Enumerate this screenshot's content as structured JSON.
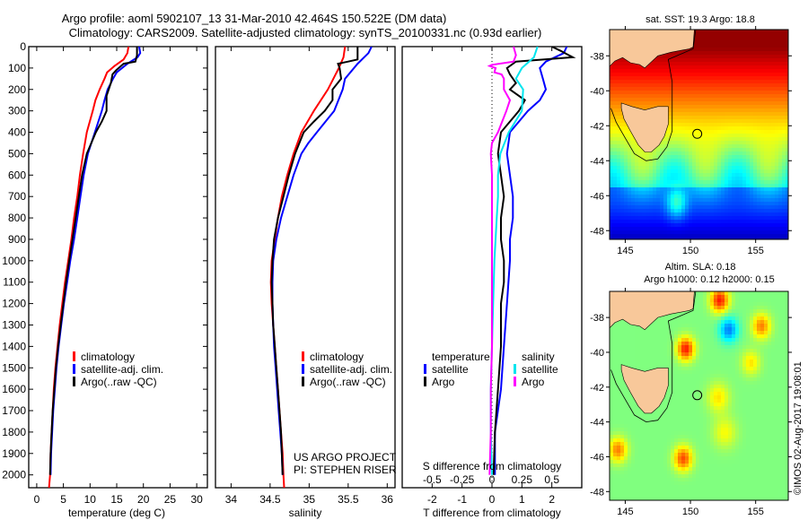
{
  "title": {
    "line1": "Argo profile: aoml 5902107_13 31-Mar-2010 42.464S 150.522E (DM data)",
    "line2": "Climatology: CARS2009. Satellite-adjusted climatology: synTS_20100331.nc (0.93d earlier)"
  },
  "colors": {
    "climatology": "#ff0000",
    "satellite": "#0000ff",
    "argo": "#000000",
    "sal_satellite": "#00e5ee",
    "sal_argo": "#ff00ff",
    "land": "#f8c89a"
  },
  "chart_data": [
    {
      "type": "line",
      "name": "temperature-profile",
      "xlabel": "temperature (deg C)",
      "ylabel": "",
      "xlim": [
        -1.5,
        32
      ],
      "ylim": [
        2060,
        0
      ],
      "xticks": [
        0,
        5,
        10,
        15,
        20,
        25,
        30
      ],
      "yticks": [
        0,
        100,
        200,
        300,
        400,
        500,
        600,
        700,
        800,
        900,
        1000,
        1100,
        1200,
        1300,
        1400,
        1500,
        1600,
        1700,
        1800,
        1900,
        2000
      ],
      "legend": [
        "climatology",
        "satellite-adj. clim.",
        "Argo(..raw -QC)"
      ],
      "legend_position": "lower-center",
      "series": [
        {
          "name": "climatology",
          "color": "#ff0000",
          "depth": [
            0,
            30,
            60,
            90,
            120,
            150,
            200,
            250,
            300,
            400,
            500,
            600,
            700,
            800,
            900,
            1000,
            1100,
            1200,
            1300,
            1400,
            1500,
            1600,
            1700,
            1800,
            1900,
            2000,
            2060
          ],
          "values": [
            17.2,
            17.0,
            16.3,
            14.6,
            13.2,
            12.7,
            11.8,
            11.0,
            10.5,
            9.4,
            8.7,
            8.1,
            7.6,
            7.0,
            6.5,
            5.9,
            5.3,
            4.8,
            4.3,
            3.9,
            3.5,
            3.2,
            3.0,
            2.8,
            2.6,
            2.5,
            2.3
          ]
        },
        {
          "name": "satellite-adj. clim.",
          "color": "#0000ff",
          "depth": [
            0,
            30,
            50,
            80,
            120,
            150,
            200,
            250,
            300,
            400,
            500,
            600,
            700,
            800,
            900,
            1000,
            1100,
            1200,
            1300,
            1400,
            1500,
            1600,
            1700,
            1800,
            1900,
            2000
          ],
          "values": [
            19.2,
            19.4,
            18.9,
            17.0,
            15.0,
            14.3,
            13.3,
            12.7,
            12.2,
            10.9,
            9.6,
            8.8,
            8.2,
            7.6,
            7.0,
            6.3,
            5.7,
            5.1,
            4.6,
            4.1,
            3.7,
            3.4,
            3.1,
            2.9,
            2.7,
            2.6
          ]
        },
        {
          "name": "Argo(..raw -QC)",
          "color": "#000000",
          "depth": [
            0,
            40,
            70,
            80,
            110,
            130,
            170,
            230,
            300,
            350,
            400,
            500,
            600,
            700,
            800,
            900,
            1000,
            1100,
            1200,
            1300,
            1400,
            1500,
            1600,
            1700,
            1800,
            1900,
            2000
          ],
          "values": [
            18.8,
            18.8,
            18.5,
            16.3,
            14.9,
            14.2,
            13.9,
            13.1,
            13.1,
            12.2,
            11.1,
            9.4,
            8.5,
            7.9,
            7.3,
            6.7,
            6.1,
            5.5,
            5.0,
            4.5,
            4.0,
            3.6,
            3.3,
            3.0,
            2.8,
            2.6,
            2.5
          ]
        }
      ]
    },
    {
      "type": "line",
      "name": "salinity-profile",
      "xlabel": "salinity",
      "xlim": [
        33.8,
        36.1
      ],
      "ylim": [
        2060,
        0
      ],
      "xticks": [
        34,
        34.5,
        35,
        35.5,
        36
      ],
      "xticklabels": [
        "34",
        "34.5",
        "35",
        "35.5",
        "36"
      ],
      "legend": [
        "climatology",
        "satellite-adj. clim.",
        "Argo(..raw -QC)"
      ],
      "legend_position": "lower-center",
      "annotation": [
        "US ARGO PROJECT",
        "PI: STEPHEN RISER"
      ],
      "series": [
        {
          "name": "climatology",
          "color": "#ff0000",
          "depth": [
            0,
            50,
            100,
            200,
            300,
            400,
            500,
            600,
            700,
            800,
            900,
            1000,
            1100,
            1200,
            1300,
            1400,
            1500,
            1600,
            1700,
            1800,
            1900,
            2000,
            2060
          ],
          "values": [
            35.46,
            35.44,
            35.38,
            35.24,
            35.06,
            34.9,
            34.8,
            34.72,
            34.65,
            34.6,
            34.56,
            34.52,
            34.51,
            34.52,
            34.54,
            34.56,
            34.58,
            34.6,
            34.62,
            34.64,
            34.66,
            34.67,
            34.68
          ]
        },
        {
          "name": "satellite-adj. clim.",
          "color": "#0000ff",
          "depth": [
            0,
            30,
            80,
            150,
            200,
            300,
            400,
            450,
            500,
            600,
            700,
            800,
            900,
            1000,
            1100,
            1200,
            1300,
            1400,
            1500,
            1600,
            1700,
            1800,
            1900,
            2000
          ],
          "values": [
            35.8,
            35.76,
            35.62,
            35.46,
            35.43,
            35.32,
            35.1,
            34.99,
            34.9,
            34.8,
            34.72,
            34.64,
            34.58,
            34.54,
            34.53,
            34.53,
            34.54,
            34.55,
            34.57,
            34.59,
            34.61,
            34.63,
            34.65,
            34.66
          ]
        },
        {
          "name": "Argo(..raw -QC)",
          "color": "#000000",
          "depth": [
            0,
            60,
            70,
            80,
            100,
            150,
            200,
            250,
            300,
            350,
            400,
            500,
            600,
            700,
            800,
            900,
            1000,
            1100,
            1200,
            1300,
            1400,
            1500,
            1600,
            1700,
            1800,
            1900,
            2000
          ],
          "values": [
            35.62,
            35.62,
            35.5,
            35.37,
            35.39,
            35.41,
            35.3,
            35.3,
            35.2,
            35.06,
            34.93,
            34.82,
            34.74,
            34.67,
            34.6,
            34.55,
            34.53,
            34.52,
            34.53,
            34.54,
            34.56,
            34.58,
            34.6,
            34.62,
            34.64,
            34.65,
            34.66
          ]
        }
      ]
    },
    {
      "type": "line",
      "name": "difference-profile",
      "xlabel": "T difference from climatology",
      "xlabel_top": "S difference from climatology",
      "xlim": [
        -3,
        3
      ],
      "ylim": [
        2060,
        0
      ],
      "xticks": [
        -2,
        -1,
        0,
        1,
        2
      ],
      "xticks_s": [
        -0.5,
        -0.25,
        0,
        0.25,
        0.5
      ],
      "xticklabels_s": [
        "-0.5",
        "-0.25",
        "0",
        "0.25",
        "0.5"
      ],
      "legend": {
        "temperature": [
          "satellite",
          "Argo"
        ],
        "salinity": [
          "satellite",
          "Argo"
        ]
      },
      "legend_position": "lower-center",
      "series": [
        {
          "name": "temperature satellite",
          "color": "#0000ff",
          "axis": "T",
          "depth": [
            0,
            30,
            70,
            100,
            150,
            200,
            250,
            300,
            400,
            500,
            600,
            700,
            800,
            900,
            1000,
            1200,
            1400,
            1600,
            1800,
            2000
          ],
          "values": [
            2.5,
            2.4,
            1.8,
            1.6,
            1.7,
            1.8,
            1.6,
            1.2,
            0.6,
            0.5,
            0.6,
            0.7,
            0.7,
            0.6,
            0.6,
            0.5,
            0.4,
            0.3,
            0.1,
            0.1
          ]
        },
        {
          "name": "temperature Argo",
          "color": "#000000",
          "axis": "T",
          "depth": [
            0,
            20,
            50,
            70,
            100,
            130,
            170,
            200,
            250,
            300,
            400,
            500,
            600,
            700,
            800,
            900,
            1000,
            1100,
            1200,
            1400,
            1600,
            1800,
            2000
          ],
          "values": [
            2.0,
            2.3,
            2.7,
            0.8,
            0.5,
            0.6,
            0.8,
            0.6,
            1.1,
            0.9,
            0.3,
            0.2,
            0.3,
            0.4,
            0.3,
            0.3,
            0.4,
            0.4,
            0.3,
            0.3,
            0.2,
            0.1,
            0.05
          ]
        },
        {
          "name": "salinity satellite",
          "color": "#00e5ee",
          "axis": "S",
          "depth": [
            0,
            50,
            100,
            150,
            200,
            300,
            400,
            500,
            600,
            700,
            800,
            900,
            1000,
            1200,
            1400,
            1600,
            1800,
            2000
          ],
          "values": [
            0.38,
            0.35,
            0.25,
            0.2,
            0.26,
            0.25,
            0.14,
            0.07,
            0.05,
            0.05,
            0.04,
            0.03,
            0.02,
            0.01,
            0.0,
            -0.01,
            -0.01,
            0.0
          ]
        },
        {
          "name": "salinity Argo",
          "color": "#ff00ff",
          "axis": "S",
          "depth": [
            0,
            40,
            70,
            85,
            90,
            100,
            120,
            130,
            150,
            200,
            250,
            300,
            400,
            450,
            500,
            600,
            800,
            1000,
            1200,
            1400,
            1600,
            1800,
            2000
          ],
          "values": [
            0.18,
            0.2,
            0.18,
            0.0,
            -0.02,
            0.03,
            0.02,
            0.08,
            0.1,
            0.1,
            0.15,
            0.12,
            0.05,
            0.0,
            -0.01,
            0.0,
            0.0,
            0.0,
            0.0,
            0.0,
            -0.01,
            -0.01,
            -0.02
          ]
        }
      ]
    },
    {
      "type": "heatmap",
      "name": "sst-map",
      "title": "sat. SST: 19.3 Argo: 18.8",
      "xlim": [
        143.8,
        157.5
      ],
      "ylim": [
        -48.5,
        -36.5
      ],
      "xticks": [
        145,
        150,
        155
      ],
      "yticks": [
        -38,
        -40,
        -42,
        -44,
        -46,
        -48
      ],
      "marker": {
        "lon": 150.522,
        "lat": -42.464
      }
    },
    {
      "type": "heatmap",
      "name": "sla-map",
      "title": "Altim. SLA: 0.18",
      "subtitle": "Argo h1000: 0.12 h2000: 0.15",
      "xlim": [
        143.8,
        157.5
      ],
      "ylim": [
        -48.5,
        -36.5
      ],
      "xticks": [
        145,
        150,
        155
      ],
      "yticks": [
        -38,
        -40,
        -42,
        -44,
        -46,
        -48
      ],
      "marker": {
        "lon": 150.522,
        "lat": -42.464
      }
    }
  ],
  "credit": "©IMOS 02-Aug-2017 19:08:01"
}
